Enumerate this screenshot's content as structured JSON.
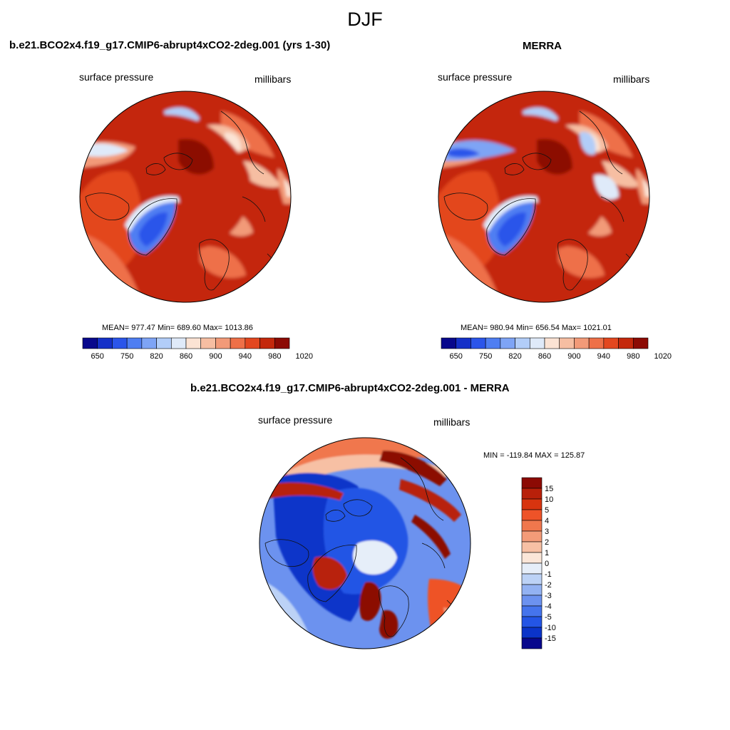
{
  "figure": {
    "season": "DJF"
  },
  "panels": [
    {
      "title": "b.e21.BCO2x4.f19_g17.CMIP6-abrupt4xCO2-2deg.001 (yrs 1-30)",
      "variable": "surface pressure",
      "units": "millibars",
      "stats": "MEAN= 977.47  Min= 689.60  Max= 1013.86"
    },
    {
      "title": "MERRA",
      "variable": "surface pressure",
      "units": "millibars",
      "stats": "MEAN= 980.94  Min= 656.54  Max= 1021.01"
    },
    {
      "title": "b.e21.BCO2x4.f19_g17.CMIP6-abrupt4xCO2-2deg.001 - MERRA",
      "variable": "surface pressure",
      "units": "millibars",
      "stats": "MIN = -119.84 MAX = 125.87"
    }
  ],
  "chart_data": [
    {
      "type": "heatmap",
      "projection": "north-polar-stereographic",
      "title": "b.e21.BCO2x4.f19_g17.CMIP6-abrupt4xCO2-2deg.001 (yrs 1-30)",
      "variable": "surface pressure",
      "units": "millibars",
      "mean": 977.47,
      "min": 689.6,
      "max": 1013.86,
      "colorbar": {
        "orientation": "horizontal",
        "tick_labels": [
          "650",
          "750",
          "820",
          "860",
          "900",
          "940",
          "980",
          "1020"
        ],
        "colors": [
          "#08088c",
          "#1530c8",
          "#2b55ea",
          "#4f7ef2",
          "#7ea4f5",
          "#b2cdf8",
          "#dfeaf9",
          "#fbe3d4",
          "#f6bea2",
          "#f29a78",
          "#ee7048",
          "#e3471f",
          "#c4280c",
          "#8c0a04"
        ]
      }
    },
    {
      "type": "heatmap",
      "projection": "north-polar-stereographic",
      "title": "MERRA",
      "variable": "surface pressure",
      "units": "millibars",
      "mean": 980.94,
      "min": 656.54,
      "max": 1021.01,
      "colorbar": {
        "orientation": "horizontal",
        "tick_labels": [
          "650",
          "750",
          "820",
          "860",
          "900",
          "940",
          "980",
          "1020"
        ],
        "colors": [
          "#08088c",
          "#1530c8",
          "#2b55ea",
          "#4f7ef2",
          "#7ea4f5",
          "#b2cdf8",
          "#dfeaf9",
          "#fbe3d4",
          "#f6bea2",
          "#f29a78",
          "#ee7048",
          "#e3471f",
          "#c4280c",
          "#8c0a04"
        ]
      }
    },
    {
      "type": "heatmap",
      "projection": "north-polar-stereographic",
      "title": "b.e21.BCO2x4.f19_g17.CMIP6-abrupt4xCO2-2deg.001 - MERRA",
      "variable": "surface pressure",
      "units": "millibars",
      "min": -119.84,
      "max": 125.87,
      "colorbar": {
        "orientation": "vertical",
        "tick_labels": [
          "15",
          "10",
          "5",
          "4",
          "3",
          "2",
          "1",
          "0",
          "-1",
          "-2",
          "-3",
          "-4",
          "-5",
          "-10",
          "-15"
        ],
        "colors": [
          "#8c0a04",
          "#b8200a",
          "#d8340f",
          "#ee5328",
          "#f0774d",
          "#f39b78",
          "#f7c0a4",
          "#fbe6d8",
          "#e6eef9",
          "#bcd2f6",
          "#93b2f2",
          "#6c92ef",
          "#4574ec",
          "#2455e5",
          "#0b34c9",
          "#08088c"
        ]
      }
    }
  ]
}
